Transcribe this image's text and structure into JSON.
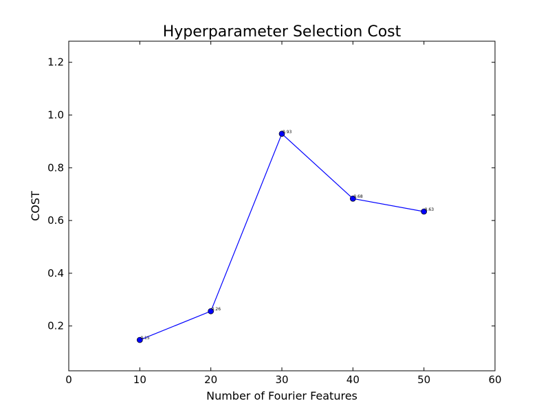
{
  "chart_data": {
    "type": "line",
    "title": "Hyperparameter Selection Cost",
    "xlabel": "Number of Fourier Features",
    "ylabel": "COST",
    "xlim": [
      0,
      60
    ],
    "ylim": [
      0.03,
      1.28
    ],
    "x_ticks": [
      0,
      10,
      20,
      30,
      40,
      50,
      60
    ],
    "y_ticks": [
      0.2,
      0.4,
      0.6,
      0.8,
      1.0,
      1.2
    ],
    "grid": false,
    "series": [
      {
        "color": "#0000ff",
        "marker": "circle",
        "x": [
          10,
          20,
          30,
          40,
          50
        ],
        "y": [
          0.147,
          0.256,
          0.929,
          0.683,
          0.634
        ],
        "point_labels": [
          "0.15",
          "0.26",
          "0.93",
          "0.68",
          "0.63"
        ]
      }
    ]
  }
}
